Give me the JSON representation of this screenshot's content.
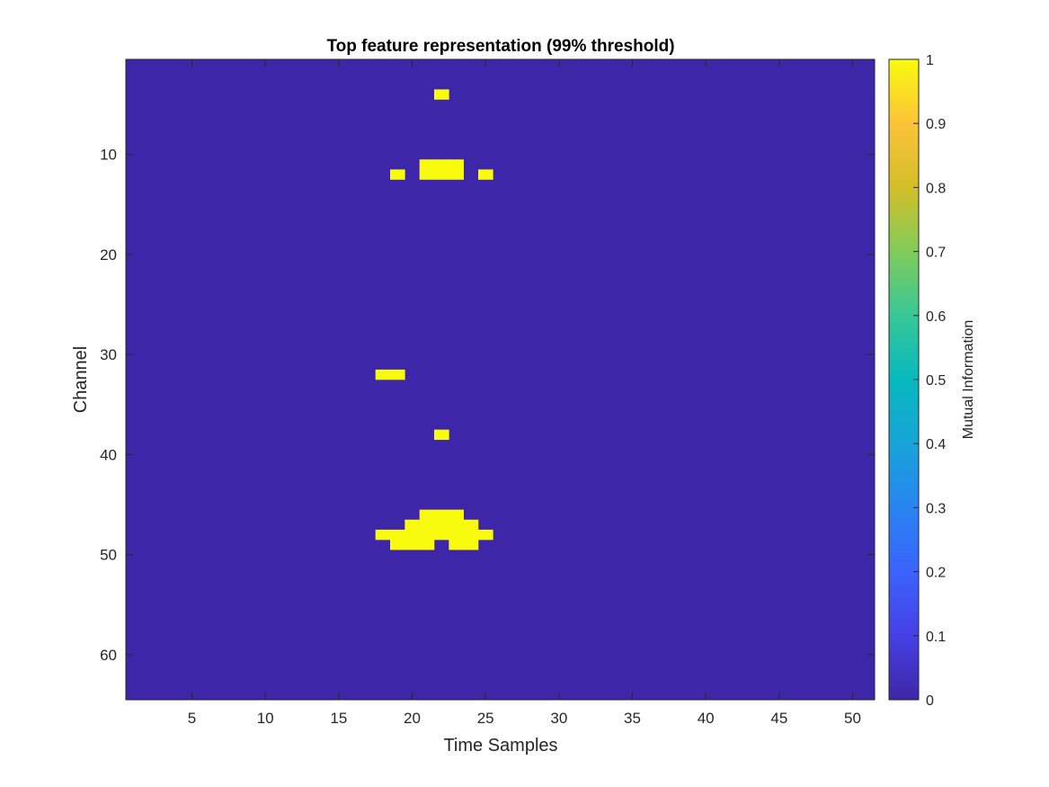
{
  "chart_data": {
    "type": "heatmap",
    "title": "Top feature representation (99% threshold)",
    "xlabel": "Time Samples",
    "ylabel": "Channel",
    "colorbar_label": "Mutual Information",
    "x_range": [
      1,
      51
    ],
    "y_range": [
      1,
      64
    ],
    "y_direction": "reverse",
    "x_ticks": [
      5,
      10,
      15,
      20,
      25,
      30,
      35,
      40,
      45,
      50
    ],
    "y_ticks": [
      10,
      20,
      30,
      40,
      50,
      60
    ],
    "colorbar_ticks": [
      0,
      0.1,
      0.2,
      0.3,
      0.4,
      0.5,
      0.6,
      0.7,
      0.8,
      0.9,
      1
    ],
    "colorbar_range": [
      0,
      1
    ],
    "colormap": "parula",
    "background_value": 0,
    "colors": {
      "low": "#3e26a8",
      "high": "#f9fb0e"
    },
    "active_cells_value_1": [
      {
        "channel": 4,
        "times": [
          22
        ]
      },
      {
        "channel": 11,
        "times": [
          21,
          22,
          23
        ]
      },
      {
        "channel": 12,
        "times": [
          19,
          21,
          22,
          23,
          25
        ]
      },
      {
        "channel": 32,
        "times": [
          18,
          19
        ]
      },
      {
        "channel": 38,
        "times": [
          22
        ]
      },
      {
        "channel": 46,
        "times": [
          21,
          22,
          23
        ]
      },
      {
        "channel": 47,
        "times": [
          20,
          21,
          22,
          23,
          24
        ]
      },
      {
        "channel": 48,
        "times": [
          18,
          19,
          20,
          21,
          22,
          23,
          24,
          25
        ]
      },
      {
        "channel": 49,
        "times": [
          19,
          20,
          21,
          23,
          24
        ]
      }
    ]
  }
}
